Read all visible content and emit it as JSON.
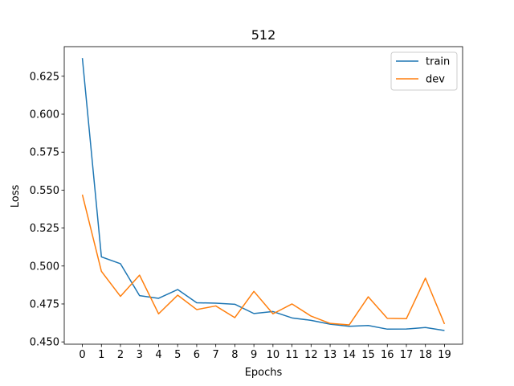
{
  "chart_data": {
    "type": "line",
    "title": "512",
    "xlabel": "Epochs",
    "ylabel": "Loss",
    "x": [
      0,
      1,
      2,
      3,
      4,
      5,
      6,
      7,
      8,
      9,
      10,
      11,
      12,
      13,
      14,
      15,
      16,
      17,
      18,
      19
    ],
    "xlim": [
      -0.95,
      19.95
    ],
    "ylim": [
      0.4485,
      0.6445
    ],
    "yticks": [
      0.45,
      0.475,
      0.5,
      0.525,
      0.55,
      0.575,
      0.6,
      0.625
    ],
    "ytick_labels": [
      "0.450",
      "0.475",
      "0.500",
      "0.525",
      "0.550",
      "0.575",
      "0.600",
      "0.625"
    ],
    "xtick_labels": [
      "0",
      "1",
      "2",
      "3",
      "4",
      "5",
      "6",
      "7",
      "8",
      "9",
      "10",
      "11",
      "12",
      "13",
      "14",
      "15",
      "16",
      "17",
      "18",
      "19"
    ],
    "grid": false,
    "legend_position": "top-right",
    "series": [
      {
        "name": "train",
        "color": "#1f77b4",
        "values": [
          0.637,
          0.506,
          0.5015,
          0.4805,
          0.4787,
          0.4845,
          0.4758,
          0.4755,
          0.4748,
          0.4687,
          0.47,
          0.4658,
          0.4642,
          0.4617,
          0.4603,
          0.4608,
          0.4584,
          0.4585,
          0.4595,
          0.4575
        ]
      },
      {
        "name": "dev",
        "color": "#ff7f0e",
        "values": [
          0.547,
          0.4965,
          0.48,
          0.494,
          0.4685,
          0.4808,
          0.4713,
          0.4737,
          0.466,
          0.4833,
          0.4685,
          0.475,
          0.467,
          0.4622,
          0.4612,
          0.4797,
          0.4655,
          0.4653,
          0.492,
          0.4618
        ]
      }
    ]
  }
}
